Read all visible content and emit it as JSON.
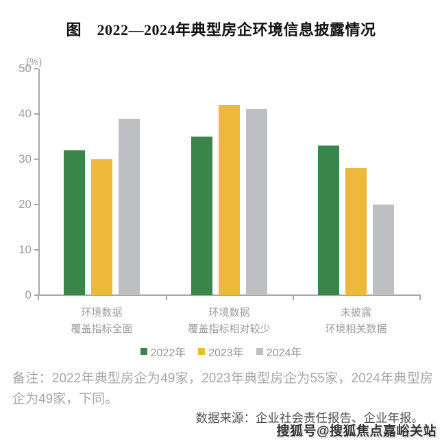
{
  "title": "图　2022—2024年典型房企环境信息披露情况",
  "chart_data": {
    "type": "bar",
    "title": "图　2022—2024年典型房企环境信息披露情况",
    "unit_label": "(%)",
    "xlabel": "",
    "ylabel": "(%)",
    "ylim": [
      0,
      50
    ],
    "yticks": [
      0,
      10,
      20,
      30,
      40,
      50
    ],
    "grid": false,
    "legend_position": "bottom",
    "categories": [
      "环境数据\n覆盖指标全面",
      "环境数据\n覆盖指标相对较少",
      "未披露\n环境相关数据"
    ],
    "series": [
      {
        "name": "2022年",
        "color": "#3A8549",
        "values": [
          32,
          35,
          33
        ]
      },
      {
        "name": "2023年",
        "color": "#EDB83C",
        "values": [
          30,
          42,
          28
        ]
      },
      {
        "name": "2024年",
        "color": "#BDBFC3",
        "values": [
          39,
          41,
          20
        ]
      }
    ]
  },
  "notes": {
    "remark": "备注：2022年典型房企为49家，2023年典型房企为55家，2024年典型房企为49家，下同。",
    "source": "数据来源：企业社会责任报告、企业年报。"
  },
  "watermark": "搜狐号@搜狐焦点嘉峪关站",
  "colors": {
    "axis": "#a8a8a8",
    "tick_text": "#9c9c9c",
    "title_text": "#111111",
    "remark_text": "#a6a6a6",
    "source_text": "#4f4f4f"
  }
}
